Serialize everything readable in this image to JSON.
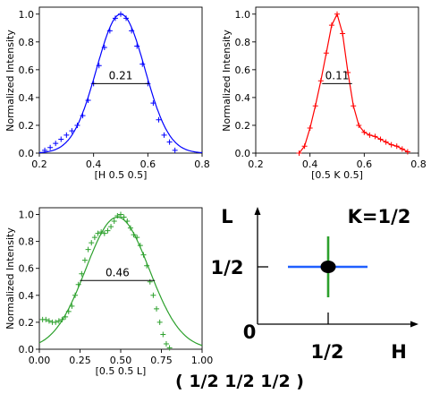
{
  "caption": "( 1/2 1/2 1/2 )",
  "chart_data": [
    {
      "type": "scatter",
      "color": "#0000ff",
      "xlabel": "[H 0.5 0.5]",
      "ylabel": "Normalized Intensity",
      "xlim": [
        0.2,
        0.8
      ],
      "ylim": [
        0.0,
        1.05
      ],
      "xticks": [
        "0.2",
        "0.4",
        "0.6",
        "0.8"
      ],
      "yticks": [
        "0.0",
        "0.2",
        "0.4",
        "0.6",
        "0.8",
        "1.0"
      ],
      "width_label": "0.21",
      "width_bar": [
        0.395,
        0.605
      ],
      "width_y": 0.5,
      "fit": {
        "center": 0.5,
        "sigma": 0.089,
        "amplitude": 1.0,
        "offset": 0.0
      },
      "points_x": [
        0.22,
        0.24,
        0.26,
        0.28,
        0.3,
        0.32,
        0.34,
        0.36,
        0.38,
        0.4,
        0.42,
        0.44,
        0.46,
        0.48,
        0.5,
        0.52,
        0.54,
        0.56,
        0.58,
        0.6,
        0.62,
        0.64,
        0.66,
        0.68,
        0.7
      ],
      "points_y": [
        0.02,
        0.04,
        0.07,
        0.1,
        0.13,
        0.16,
        0.2,
        0.27,
        0.38,
        0.5,
        0.63,
        0.76,
        0.88,
        0.97,
        1.0,
        0.97,
        0.88,
        0.77,
        0.64,
        0.5,
        0.36,
        0.24,
        0.13,
        0.08,
        0.02
      ]
    },
    {
      "type": "scatter",
      "color": "#ff0000",
      "xlabel": "[0.5 K 0.5]",
      "ylabel": "Normalized Intensity",
      "xlim": [
        0.2,
        0.8
      ],
      "ylim": [
        0.0,
        1.05
      ],
      "xticks": [
        "0.2",
        "0.4",
        "0.6",
        "0.8"
      ],
      "yticks": [
        "0.0",
        "0.2",
        "0.4",
        "0.6",
        "0.8",
        "1.0"
      ],
      "width_label": "0.11",
      "width_bar": [
        0.445,
        0.555
      ],
      "width_y": 0.5,
      "points_x": [
        0.36,
        0.38,
        0.4,
        0.42,
        0.44,
        0.46,
        0.48,
        0.5,
        0.52,
        0.54,
        0.56,
        0.58,
        0.6,
        0.62,
        0.64,
        0.66,
        0.68,
        0.7,
        0.72,
        0.74,
        0.76
      ],
      "points_y": [
        0.0,
        0.05,
        0.18,
        0.34,
        0.52,
        0.72,
        0.92,
        1.0,
        0.86,
        0.58,
        0.34,
        0.2,
        0.15,
        0.13,
        0.12,
        0.1,
        0.08,
        0.06,
        0.05,
        0.03,
        0.01
      ]
    },
    {
      "type": "scatter",
      "color": "#2ca02c",
      "xlabel": "[0.5 0.5 L]",
      "ylabel": "Normalized Intensity",
      "xlim": [
        0.0,
        1.0
      ],
      "ylim": [
        0.0,
        1.05
      ],
      "xticks": [
        "0.00",
        "0.25",
        "0.50",
        "0.75",
        "1.00"
      ],
      "yticks": [
        "0.0",
        "0.2",
        "0.4",
        "0.6",
        "0.8",
        "1.0"
      ],
      "width_label": "0.46",
      "width_bar": [
        0.25,
        0.71
      ],
      "width_y": 0.51,
      "fit": {
        "center": 0.48,
        "sigma": 0.195,
        "amplitude": 0.98,
        "offset": 0.0
      },
      "points_x": [
        0.02,
        0.04,
        0.06,
        0.08,
        0.1,
        0.12,
        0.14,
        0.16,
        0.18,
        0.2,
        0.22,
        0.24,
        0.26,
        0.28,
        0.3,
        0.32,
        0.34,
        0.36,
        0.38,
        0.4,
        0.42,
        0.44,
        0.46,
        0.48,
        0.5,
        0.52,
        0.54,
        0.56,
        0.58,
        0.6,
        0.62,
        0.64,
        0.66,
        0.68,
        0.7,
        0.72,
        0.74,
        0.76,
        0.78,
        0.8
      ],
      "points_y": [
        0.22,
        0.22,
        0.21,
        0.2,
        0.2,
        0.21,
        0.22,
        0.24,
        0.28,
        0.32,
        0.4,
        0.48,
        0.56,
        0.66,
        0.74,
        0.79,
        0.83,
        0.86,
        0.87,
        0.86,
        0.88,
        0.91,
        0.95,
        0.99,
        1.0,
        0.98,
        0.95,
        0.9,
        0.85,
        0.83,
        0.77,
        0.7,
        0.62,
        0.5,
        0.4,
        0.3,
        0.2,
        0.11,
        0.04,
        0.01
      ]
    }
  ],
  "diagram": {
    "axis_v_label": "L",
    "axis_h_label": "H",
    "origin_label": "0",
    "v_tick_label": "1/2",
    "h_tick_label": "1/2",
    "plane_label": "K=1/2"
  }
}
